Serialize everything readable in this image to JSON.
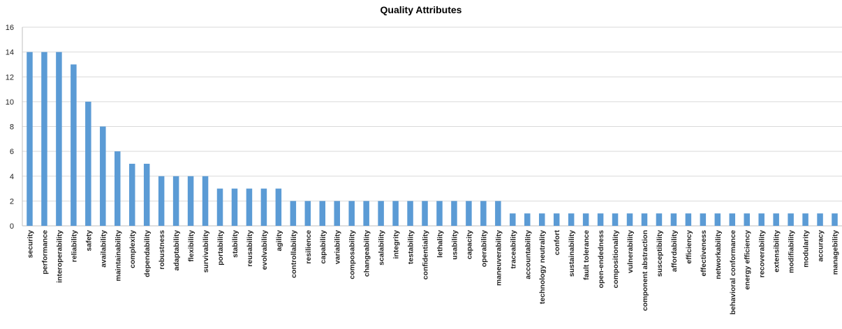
{
  "chart_data": {
    "type": "bar",
    "title": "Quality Attributes",
    "xlabel": "",
    "ylabel": "",
    "ylim": [
      0,
      16
    ],
    "yticks": [
      0,
      2,
      4,
      6,
      8,
      10,
      12,
      14,
      16
    ],
    "grid": true,
    "legend": "none",
    "bar_color": "#5b9bd5",
    "categories": [
      "security",
      "performance",
      "interoperability",
      "reliability",
      "safety",
      "availability",
      "maintainability",
      "complexity",
      "dependability",
      "robustness",
      "adaptability",
      "flexibility",
      "survivability",
      "portability",
      "stability",
      "reusability",
      "evolvability",
      "agility",
      "controllability",
      "resilience",
      "capability",
      "variability",
      "composability",
      "changeability",
      "scalability",
      "integrity",
      "testability",
      "confidentiality",
      "lethality",
      "usability",
      "capacity",
      "operability",
      "maneuverability",
      "traceability",
      "accountability",
      "technology neutrality",
      "confort",
      "sustainability",
      "fault tolerance",
      "open-endedness",
      "compositionality",
      "vulnerability",
      "component abstraction",
      "susceptibility",
      "affordability",
      "efficiency",
      "effectiveness",
      "networkability",
      "behavioral conformance",
      "energy efficiency",
      "recoverability",
      "extensibility",
      "modifiability",
      "modularity",
      "accuracy",
      "managebility"
    ],
    "values": [
      14,
      14,
      14,
      13,
      10,
      8,
      6,
      5,
      5,
      4,
      4,
      4,
      4,
      3,
      3,
      3,
      3,
      3,
      2,
      2,
      2,
      2,
      2,
      2,
      2,
      2,
      2,
      2,
      2,
      2,
      2,
      2,
      2,
      1,
      1,
      1,
      1,
      1,
      1,
      1,
      1,
      1,
      1,
      1,
      1,
      1,
      1,
      1,
      1,
      1,
      1,
      1,
      1,
      1,
      1,
      1
    ]
  }
}
